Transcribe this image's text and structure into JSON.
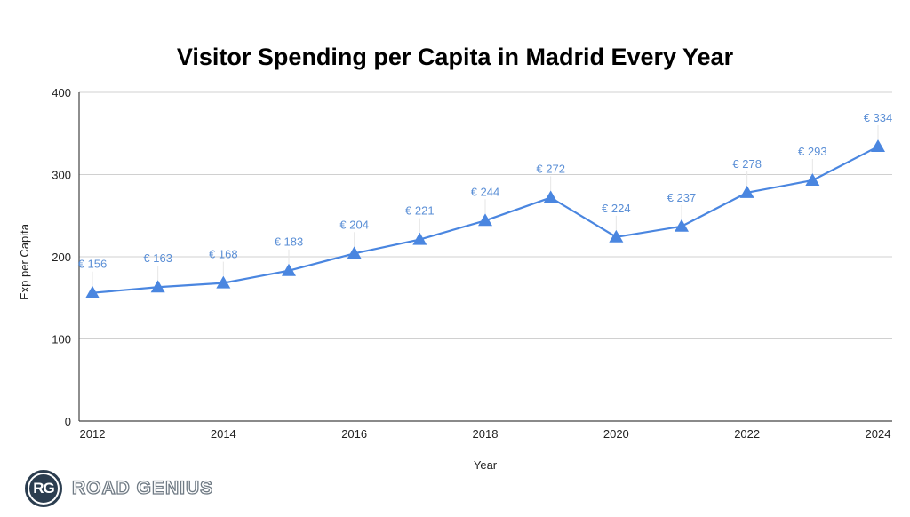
{
  "chart_data": {
    "type": "line",
    "title": "Visitor Spending per Capita in Madrid Every Year",
    "xlabel": "Year",
    "ylabel": "Exp per Capita",
    "x": [
      2012,
      2013,
      2014,
      2015,
      2016,
      2017,
      2018,
      2019,
      2020,
      2021,
      2022,
      2023,
      2024
    ],
    "x_ticks": [
      "2012",
      "2014",
      "2016",
      "2018",
      "2020",
      "2022",
      "2024"
    ],
    "y_ticks": [
      "0",
      "100",
      "200",
      "300",
      "400"
    ],
    "ylim": [
      0,
      400
    ],
    "grid": true,
    "legend": "none",
    "series": [
      {
        "name": "Exp per Capita",
        "values": [
          156,
          163,
          168,
          183,
          204,
          221,
          244,
          272,
          224,
          237,
          278,
          293,
          334
        ],
        "data_labels": [
          "€ 156",
          "€ 163",
          "€ 168",
          "€ 183",
          "€ 204",
          "€ 221",
          "€ 244",
          "€ 272",
          "€ 224",
          "€ 237",
          "€ 278",
          "€ 293",
          "€ 334"
        ],
        "marker": "triangle",
        "color": "#4a86e0",
        "label_color": "#5b8fd6"
      }
    ]
  },
  "branding": {
    "logo_initials": "RG",
    "logo_text": "ROAD GENIUS"
  }
}
